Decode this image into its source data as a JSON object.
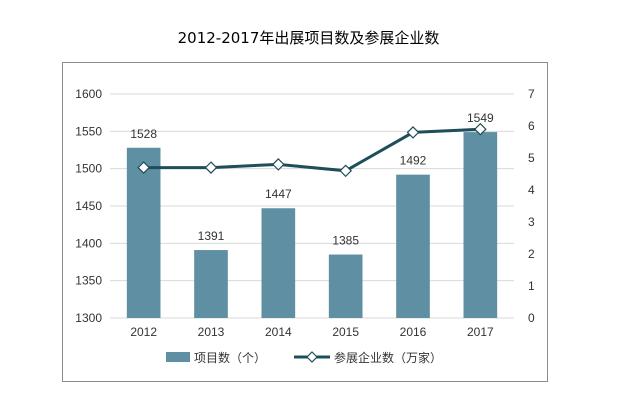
{
  "chart_data": {
    "type": "bar",
    "title": "2012-2017年出展项目数及参展企业数",
    "categories": [
      "2012",
      "2013",
      "2014",
      "2015",
      "2016",
      "2017"
    ],
    "series": [
      {
        "name": "项目数（个）",
        "type": "bar",
        "axis": "left",
        "values": [
          1528,
          1391,
          1447,
          1385,
          1492,
          1549
        ],
        "color": "#5f8fa3"
      },
      {
        "name": "参展企业数（万家）",
        "type": "line",
        "axis": "right",
        "values": [
          4.7,
          4.7,
          4.8,
          4.6,
          5.8,
          5.9
        ],
        "color": "#1f4e5a"
      }
    ],
    "ylim_left": [
      1300,
      1600
    ],
    "yticks_left": [
      1300,
      1350,
      1400,
      1450,
      1500,
      1550,
      1600
    ],
    "ylim_right": [
      0,
      7
    ],
    "yticks_right": [
      0,
      1,
      2,
      3,
      4,
      5,
      6,
      7
    ],
    "xlabel": "",
    "ylabel": "",
    "grid": "horizontal",
    "legend": "bottom"
  }
}
